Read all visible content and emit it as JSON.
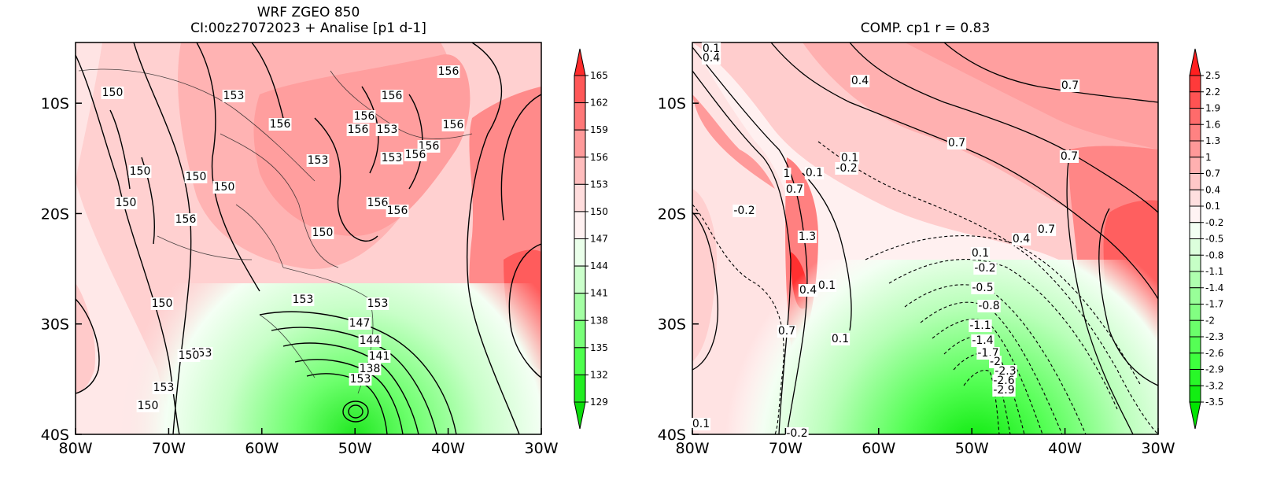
{
  "left_panel": {
    "title_line1": "WRF ZGEO 850",
    "title_line2": "CI:00z27072023 + Analise  [p1 d-1]",
    "x_ticks": [
      "80W",
      "70W",
      "60W",
      "50W",
      "40W",
      "30W"
    ],
    "y_ticks": [
      "10S",
      "20S",
      "30S",
      "40S"
    ],
    "colorbar_labels": [
      "165",
      "162",
      "159",
      "156",
      "153",
      "150",
      "147",
      "144",
      "141",
      "138",
      "135",
      "132",
      "129"
    ],
    "colorbar_colors": [
      "#ff2b2b",
      "#ff5858",
      "#ff7878",
      "#ff9a9a",
      "#ffbdbd",
      "#ffdddd",
      "#fff1f1",
      "#eaffea",
      "#cbffcb",
      "#a4ffa4",
      "#79ff79",
      "#4dff4d",
      "#22ee22",
      "#0bdd0b"
    ],
    "contour_labels": [
      "150",
      "153",
      "156",
      "156",
      "156",
      "156",
      "156",
      "153",
      "156",
      "156",
      "153",
      "156",
      "153",
      "150",
      "150",
      "150",
      "150",
      "156",
      "156",
      "156",
      "150",
      "153",
      "153",
      "150",
      "147",
      "144",
      "141",
      "138",
      "153",
      "153",
      "150",
      "153",
      "150"
    ]
  },
  "right_panel": {
    "title": "COMP. cp1   r =   0.83",
    "x_ticks": [
      "80W",
      "70W",
      "60W",
      "50W",
      "40W",
      "30W"
    ],
    "y_ticks": [
      "10S",
      "20S",
      "30S",
      "40S"
    ],
    "colorbar_labels": [
      "2.5",
      "2.2",
      "1.9",
      "1.6",
      "1.3",
      "1",
      "0.7",
      "0.4",
      "0.1",
      "-0.2",
      "-0.5",
      "-0.8",
      "-1.1",
      "-1.4",
      "-1.7",
      "-2",
      "-2.3",
      "-2.6",
      "-2.9",
      "-3.2",
      "-3.5"
    ],
    "colorbar_colors": [
      "#ff1f1f",
      "#ff3a3a",
      "#ff5353",
      "#ff6b6b",
      "#ff8282",
      "#ff9999",
      "#ffb0b0",
      "#ffc8c8",
      "#ffdfdf",
      "#fff3f3",
      "#f3fff3",
      "#dcffdc",
      "#c6ffc6",
      "#afffaf",
      "#98ff98",
      "#82ff82",
      "#6bff6b",
      "#55ff55",
      "#3eff3e",
      "#28f828",
      "#12ee12",
      "#00e600"
    ],
    "contour_labels": [
      "0.1",
      "0.4",
      "0.4",
      "0.7",
      "0.7",
      "1",
      "0.1",
      "0.1",
      "-0.2",
      "0.7",
      "0.7",
      "-0.2",
      "1.3",
      "0.4",
      "0.1",
      "0.1",
      "0.7",
      "0.4",
      "0.7",
      "0.1",
      "-0.2",
      "-0.5",
      "-0.8",
      "-1.1",
      "-1.4",
      "-1.7",
      "-2",
      "-2.3",
      "-2.6",
      "-2.9",
      "0.1",
      "-0.2"
    ]
  }
}
